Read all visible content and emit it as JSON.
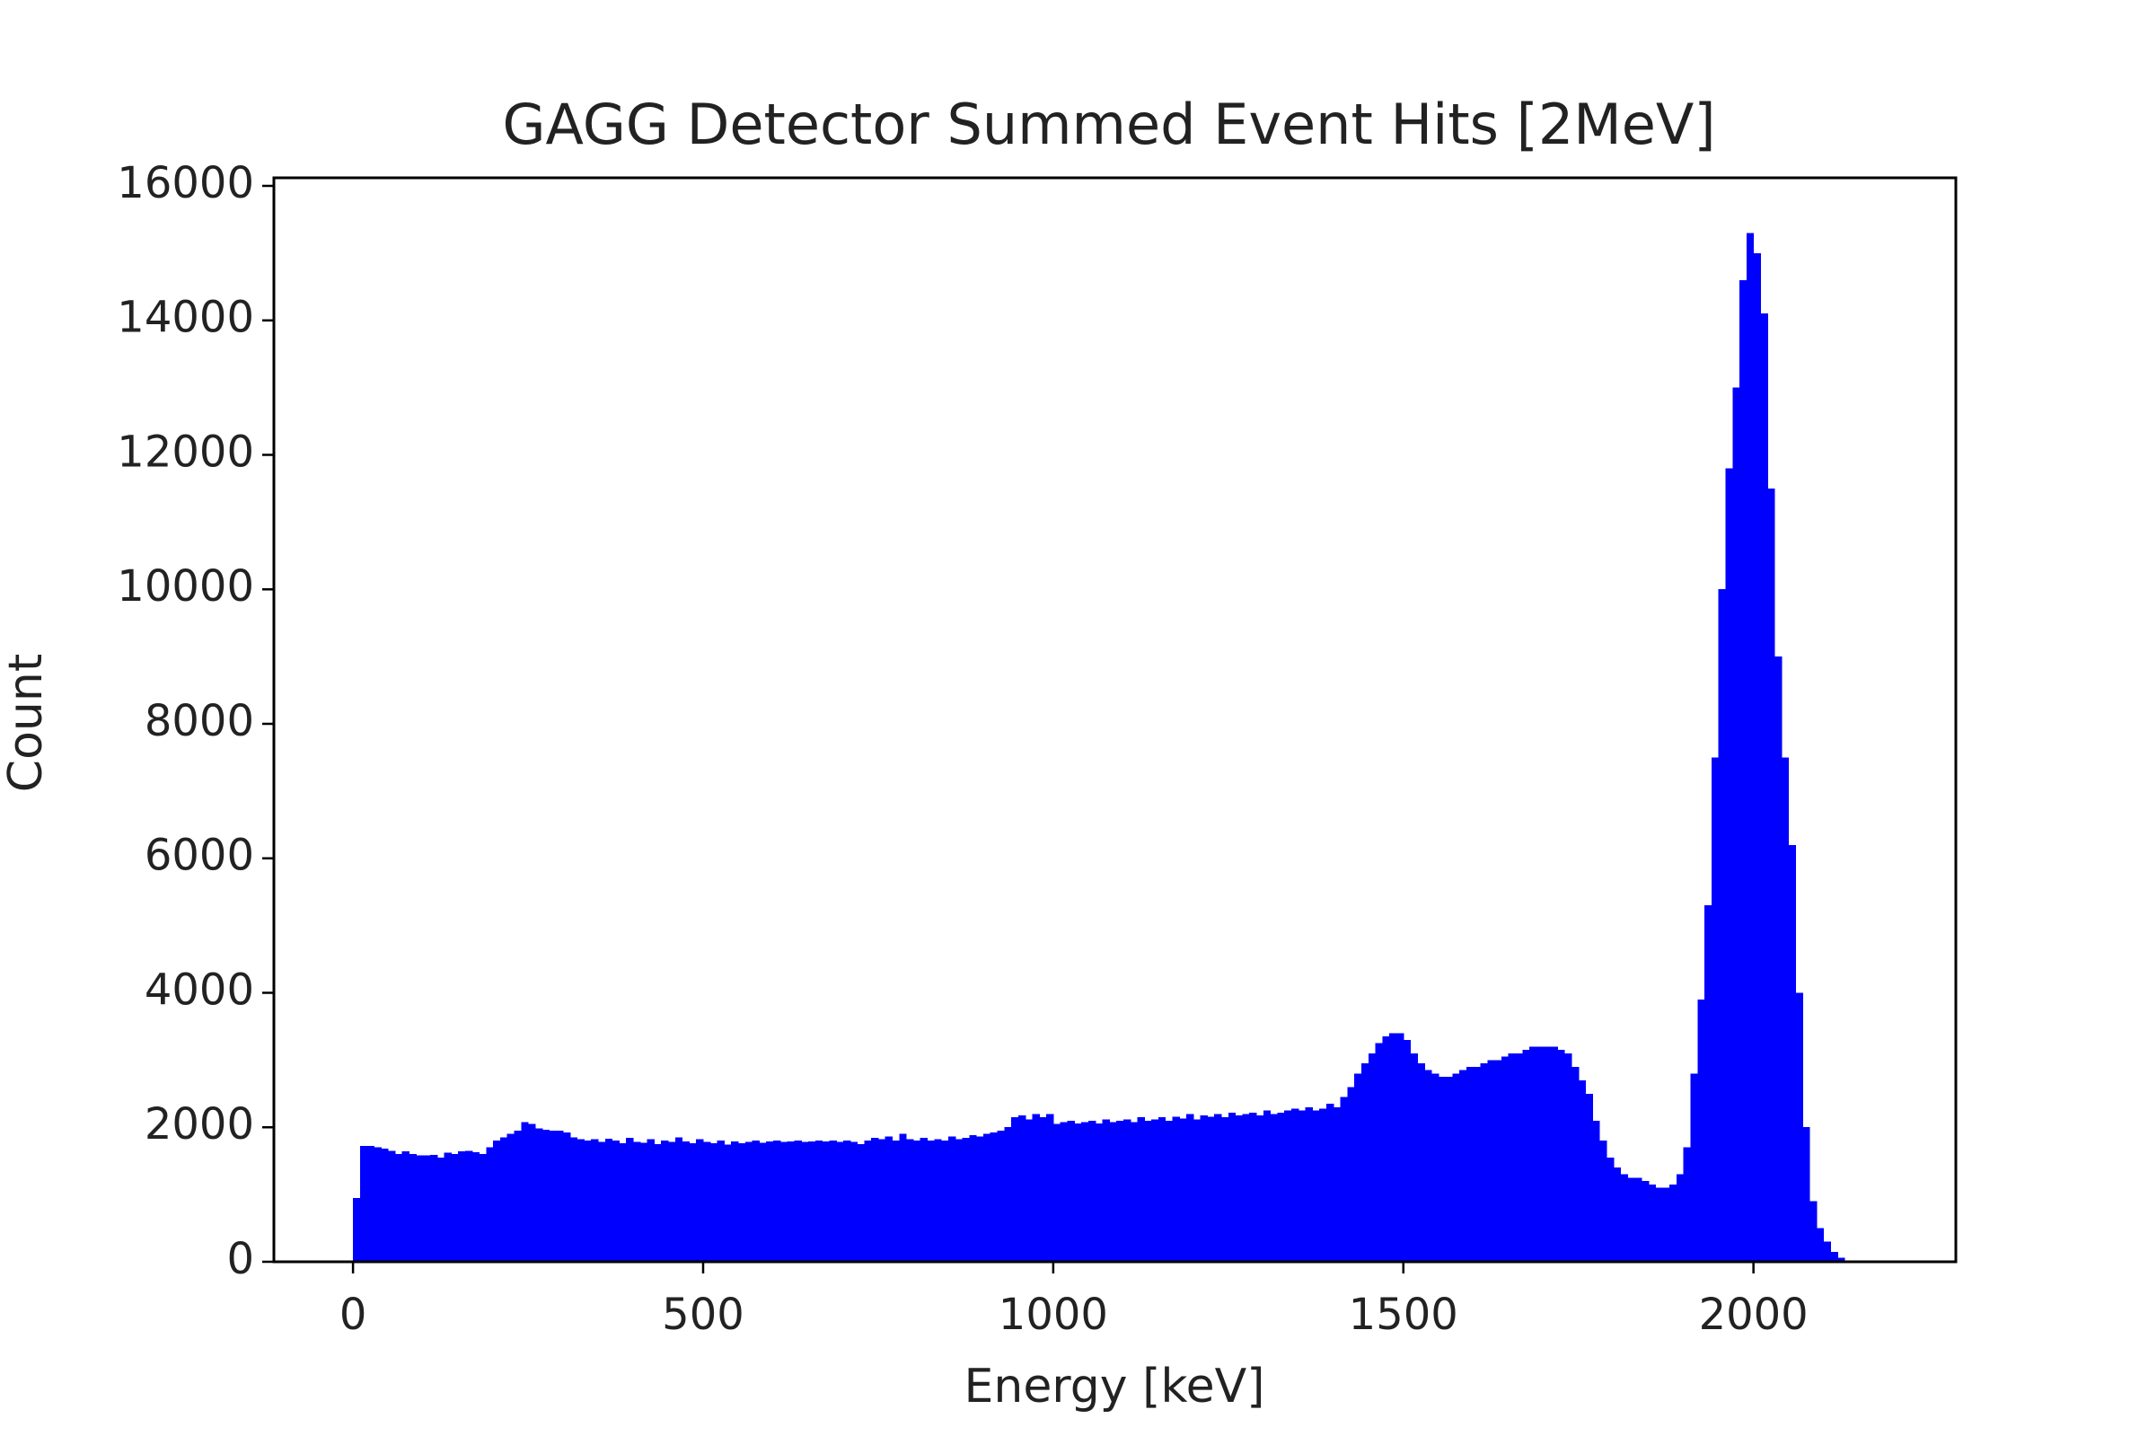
{
  "chart_data": {
    "type": "histogram",
    "title": "GAGG Detector Summed Event Hits [2MeV]",
    "x_label": "Energy [keV]",
    "y_label": "Count",
    "color": "#0000ff",
    "xlim": [
      -113,
      2289
    ],
    "ylim": [
      0,
      16120
    ],
    "xticks": [
      0,
      500,
      1000,
      1500,
      2000
    ],
    "yticks": [
      0,
      2000,
      4000,
      6000,
      8000,
      10000,
      12000,
      14000,
      16000
    ],
    "bins": [
      0,
      10,
      20,
      30,
      40,
      50,
      60,
      70,
      80,
      90,
      100,
      110,
      120,
      130,
      140,
      150,
      160,
      170,
      180,
      190,
      200,
      210,
      220,
      230,
      240,
      250,
      260,
      270,
      280,
      290,
      300,
      310,
      320,
      330,
      340,
      350,
      360,
      370,
      380,
      390,
      400,
      410,
      420,
      430,
      440,
      450,
      460,
      470,
      480,
      490,
      500,
      510,
      520,
      530,
      540,
      550,
      560,
      570,
      580,
      590,
      600,
      610,
      620,
      630,
      640,
      650,
      660,
      670,
      680,
      690,
      700,
      710,
      720,
      730,
      740,
      750,
      760,
      770,
      780,
      790,
      800,
      810,
      820,
      830,
      840,
      850,
      860,
      870,
      880,
      890,
      900,
      910,
      920,
      930,
      940,
      950,
      960,
      970,
      980,
      990,
      1000,
      1010,
      1020,
      1030,
      1040,
      1050,
      1060,
      1070,
      1080,
      1090,
      1100,
      1110,
      1120,
      1130,
      1140,
      1150,
      1160,
      1170,
      1180,
      1190,
      1200,
      1210,
      1220,
      1230,
      1240,
      1250,
      1260,
      1270,
      1280,
      1290,
      1300,
      1310,
      1320,
      1330,
      1340,
      1350,
      1360,
      1370,
      1380,
      1390,
      1400,
      1410,
      1420,
      1430,
      1440,
      1450,
      1460,
      1470,
      1480,
      1490,
      1500,
      1510,
      1520,
      1530,
      1540,
      1550,
      1560,
      1570,
      1580,
      1590,
      1600,
      1610,
      1620,
      1630,
      1640,
      1650,
      1660,
      1670,
      1680,
      1690,
      1700,
      1710,
      1720,
      1730,
      1740,
      1750,
      1760,
      1770,
      1780,
      1790,
      1800,
      1810,
      1820,
      1830,
      1840,
      1850,
      1860,
      1870,
      1880,
      1890,
      1900,
      1910,
      1920,
      1930,
      1940,
      1950,
      1960,
      1970,
      1980,
      1990,
      2000,
      2010,
      2020,
      2030,
      2040,
      2050,
      2060,
      2070,
      2080,
      2090,
      2100,
      2110,
      2120,
      2130
    ],
    "counts": [
      950,
      1720,
      1720,
      1700,
      1680,
      1650,
      1600,
      1640,
      1600,
      1580,
      1580,
      1590,
      1550,
      1620,
      1600,
      1640,
      1650,
      1630,
      1600,
      1700,
      1800,
      1850,
      1900,
      1950,
      2080,
      2050,
      1980,
      1960,
      1950,
      1950,
      1920,
      1850,
      1820,
      1800,
      1820,
      1780,
      1830,
      1800,
      1760,
      1840,
      1780,
      1770,
      1820,
      1750,
      1800,
      1780,
      1850,
      1790,
      1760,
      1820,
      1780,
      1760,
      1800,
      1740,
      1790,
      1760,
      1780,
      1800,
      1770,
      1790,
      1800,
      1780,
      1790,
      1800,
      1780,
      1790,
      1800,
      1790,
      1800,
      1780,
      1800,
      1780,
      1750,
      1800,
      1840,
      1820,
      1860,
      1800,
      1900,
      1820,
      1800,
      1840,
      1800,
      1820,
      1800,
      1860,
      1820,
      1840,
      1880,
      1860,
      1900,
      1920,
      1950,
      2000,
      2150,
      2180,
      2120,
      2200,
      2150,
      2200,
      2050,
      2080,
      2100,
      2060,
      2080,
      2100,
      2060,
      2120,
      2080,
      2100,
      2120,
      2080,
      2150,
      2100,
      2120,
      2150,
      2100,
      2160,
      2130,
      2200,
      2120,
      2180,
      2160,
      2200,
      2150,
      2220,
      2180,
      2200,
      2220,
      2180,
      2250,
      2200,
      2220,
      2250,
      2280,
      2250,
      2300,
      2250,
      2280,
      2350,
      2300,
      2450,
      2600,
      2800,
      2950,
      3100,
      3250,
      3350,
      3400,
      3400,
      3300,
      3100,
      2950,
      2850,
      2800,
      2750,
      2750,
      2800,
      2850,
      2900,
      2900,
      2950,
      3000,
      3000,
      3050,
      3100,
      3100,
      3150,
      3200,
      3200,
      3200,
      3200,
      3150,
      3100,
      2900,
      2700,
      2500,
      2100,
      1800,
      1550,
      1400,
      1300,
      1250,
      1250,
      1200,
      1150,
      1100,
      1100,
      1150,
      1300,
      1700,
      2800,
      3900,
      5300,
      7500,
      10000,
      11800,
      13000,
      14600,
      15300,
      15000,
      14100,
      11500,
      9000,
      7500,
      6200,
      4000,
      2000,
      900,
      500,
      300,
      150,
      60
    ]
  }
}
